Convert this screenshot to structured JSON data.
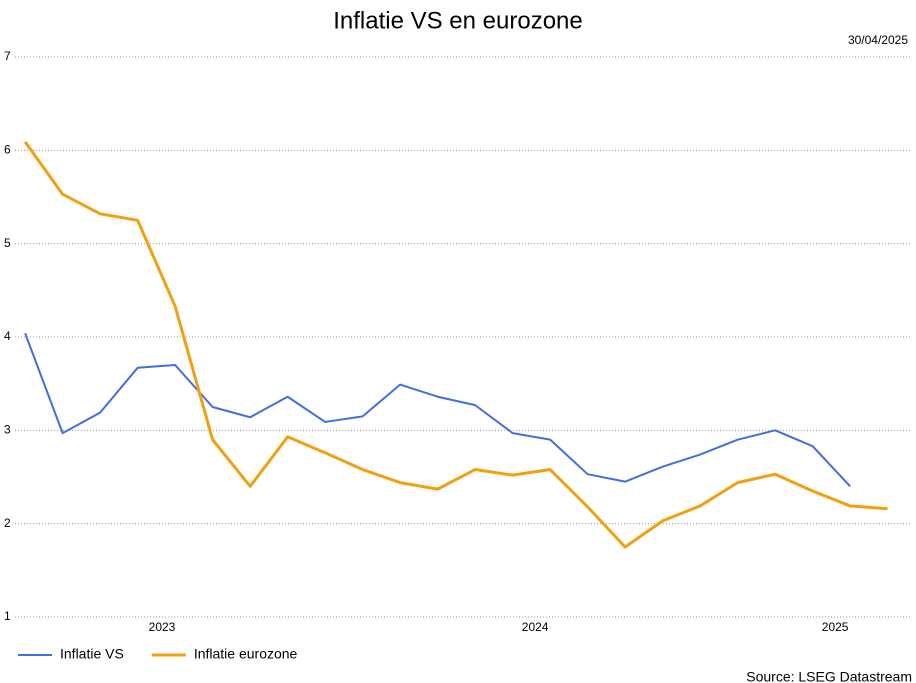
{
  "chart_data": {
    "type": "line",
    "title": "Inflatie VS en eurozone",
    "date": "30/04/2025",
    "source": "Source: LSEG Datastream",
    "x": [
      0,
      1,
      2,
      3,
      4,
      5,
      6,
      7,
      8,
      9,
      10,
      11,
      12,
      13,
      14,
      15,
      16,
      17,
      18,
      19,
      20,
      21,
      22,
      23
    ],
    "xlim": [
      -0.27,
      23.65
    ],
    "xticks": [
      {
        "value": 3.65,
        "label": "2023"
      },
      {
        "value": 13.6,
        "label": "2024"
      },
      {
        "value": 21.6,
        "label": "2025"
      }
    ],
    "ylim": [
      1,
      7
    ],
    "yticks": [
      1,
      2,
      3,
      4,
      5,
      6,
      7
    ],
    "grid": true,
    "legend": "bottom-left",
    "series": [
      {
        "name": "Inflatie VS",
        "color": "#3f6fe0",
        "values": [
          4.04,
          2.97,
          3.19,
          3.67,
          3.7,
          3.25,
          3.14,
          3.36,
          3.09,
          3.15,
          3.49,
          3.36,
          3.27,
          2.97,
          2.9,
          2.53,
          2.45,
          2.61,
          2.74,
          2.9,
          3.0,
          2.83,
          2.4,
          null
        ]
      },
      {
        "name": "Inflatie eurozone",
        "color": "#f0a010",
        "values": [
          6.09,
          5.53,
          5.32,
          5.25,
          4.33,
          2.9,
          2.4,
          2.93,
          2.76,
          2.58,
          2.44,
          2.37,
          2.58,
          2.52,
          2.58,
          2.18,
          1.75,
          2.03,
          2.19,
          2.44,
          2.53,
          2.35,
          2.19,
          2.16
        ]
      }
    ]
  }
}
